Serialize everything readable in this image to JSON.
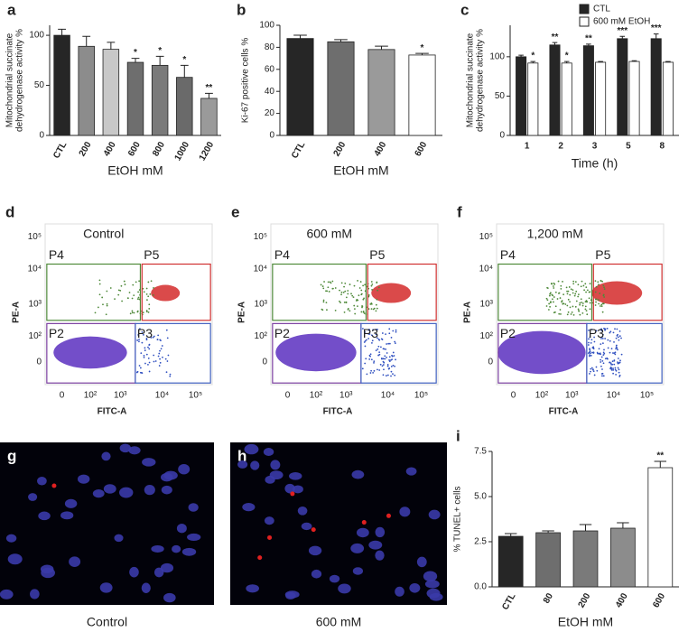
{
  "chart_data": [
    {
      "type": "bar",
      "letter": "a",
      "y_label": [
        "Mitochondrial succinate",
        "dehydrogenase activity %"
      ],
      "x_label": "EtOH mM",
      "categories": [
        "CTL",
        "200",
        "400",
        "600",
        "800",
        "1000",
        "1200"
      ],
      "values": [
        100,
        89,
        86,
        73,
        70,
        58,
        37
      ],
      "errors": [
        6,
        10,
        7,
        4,
        9,
        12,
        5
      ],
      "colors": [
        "#262626",
        "#8c8c8c",
        "#c8c8c8",
        "#6e6e6e",
        "#7a7a7a",
        "#6a6a6a",
        "#9a9a9a"
      ],
      "annotations": [
        null,
        null,
        null,
        "*",
        "*",
        "*",
        "**"
      ],
      "ylim": [
        0,
        110
      ],
      "yticks": [
        0,
        50,
        100
      ]
    },
    {
      "type": "bar",
      "letter": "b",
      "y_label": [
        "Ki-67 positive cells %"
      ],
      "x_label": "EtOH mM",
      "categories": [
        "CTL",
        "200",
        "400",
        "600"
      ],
      "values": [
        88,
        85,
        78,
        73
      ],
      "errors": [
        3,
        2,
        3,
        1.5
      ],
      "colors": [
        "#262626",
        "#6e6e6e",
        "#9a9a9a",
        "#ffffff"
      ],
      "annotations": [
        null,
        null,
        null,
        "*"
      ],
      "ylim": [
        0,
        100
      ],
      "yticks": [
        0,
        20,
        40,
        60,
        80,
        100
      ]
    },
    {
      "type": "grouped_bar",
      "letter": "c",
      "y_label": [
        "Mitochondrial succinate",
        "dehydrogenase activity %"
      ],
      "x_label": "Time (h)",
      "categories": [
        "1",
        "2",
        "3",
        "5",
        "8"
      ],
      "legend": "top-right",
      "series": [
        {
          "name": "CTL",
          "color": "#262626",
          "values": [
            100,
            115,
            114,
            123,
            123
          ],
          "errors": [
            2,
            3,
            2,
            3,
            6
          ],
          "annotations": [
            null,
            "**",
            "**",
            "***",
            "***"
          ]
        },
        {
          "name": "600 mM EtOH",
          "color": "#ffffff",
          "values": [
            92,
            92,
            93,
            94,
            93
          ],
          "errors": [
            2,
            2,
            1,
            1,
            1
          ],
          "annotations": [
            "*",
            "*",
            null,
            null,
            null
          ]
        }
      ],
      "ylim": [
        0,
        140
      ],
      "yticks": [
        0,
        50,
        100
      ]
    },
    {
      "type": "bar",
      "letter": "i",
      "y_label": [
        "% TUNEL+ cells"
      ],
      "x_label": "EtOH mM",
      "categories": [
        "CTL",
        "80",
        "200",
        "400",
        "600"
      ],
      "values": [
        2.8,
        3.0,
        3.1,
        3.25,
        6.6
      ],
      "errors": [
        0.15,
        0.1,
        0.35,
        0.3,
        0.35
      ],
      "colors": [
        "#262626",
        "#6e6e6e",
        "#7a7a7a",
        "#8c8c8c",
        "#ffffff"
      ],
      "annotations": [
        null,
        null,
        null,
        null,
        "**"
      ],
      "ylim": [
        0,
        7.5
      ],
      "yticks": [
        {
          "value": 0,
          "label": "0.0"
        },
        {
          "value": 2.5,
          "label": "2.5"
        },
        {
          "value": 5,
          "label": "5.0"
        },
        {
          "value": 7.5,
          "label": "7.5"
        }
      ]
    }
  ],
  "flow_panels": [
    {
      "letter": "d",
      "title": "Control",
      "y_label": "PE-A",
      "x_label": "FITC-A",
      "gates": [
        "P4",
        "P5",
        "P2",
        "P3"
      ],
      "x_ticks": [
        "0",
        "10²",
        "10³",
        "10⁴",
        "10⁵"
      ],
      "y_ticks": [
        "10⁵",
        "10⁴",
        "10³",
        "10²",
        "0"
      ]
    },
    {
      "letter": "e",
      "title": "600 mM",
      "y_label": "PE-A",
      "x_label": "FITC-A",
      "gates": [
        "P4",
        "P5",
        "P2",
        "P3"
      ],
      "x_ticks": [
        "0",
        "10²",
        "10³",
        "10⁴",
        "10⁵"
      ],
      "y_ticks": [
        "10⁵",
        "10⁴",
        "10³",
        "10²",
        "0"
      ]
    },
    {
      "letter": "f",
      "title": "1,200 mM",
      "y_label": "PE-A",
      "x_label": "FITC-A",
      "gates": [
        "P4",
        "P5",
        "P2",
        "P3"
      ],
      "x_ticks": [
        "0",
        "10²",
        "10³",
        "10⁴",
        "10⁵"
      ],
      "y_ticks": [
        "10⁵",
        "10⁴",
        "10³",
        "10²",
        "0"
      ]
    }
  ],
  "images": [
    {
      "letter": "g",
      "caption": "Control"
    },
    {
      "letter": "h",
      "caption": "600 mM"
    }
  ]
}
